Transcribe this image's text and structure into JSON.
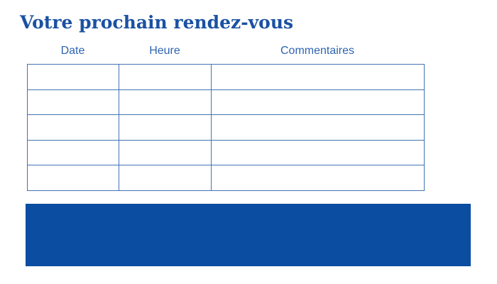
{
  "page": {
    "title": "Votre prochain rendez-vous"
  },
  "table": {
    "columns": [
      "Date",
      "Heure",
      "Commentaires"
    ],
    "rows": [
      [
        "",
        "",
        ""
      ],
      [
        "",
        "",
        ""
      ],
      [
        "",
        "",
        ""
      ],
      [
        "",
        "",
        ""
      ],
      [
        "",
        "",
        ""
      ]
    ]
  },
  "colors": {
    "background": "#ffffff",
    "title": "#1a51a2",
    "header_text": "#2e64b0",
    "table_border": "#4272b4",
    "banner": "#0b4da0"
  }
}
